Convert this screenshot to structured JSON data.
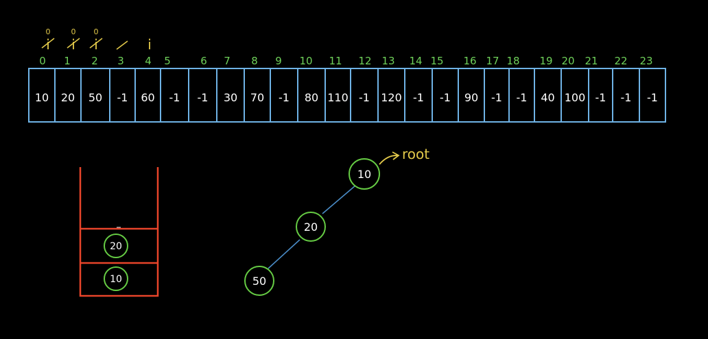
{
  "array": {
    "indices": [
      "0",
      "1",
      "2",
      "3",
      "4",
      "5",
      "6",
      "7",
      "8",
      "9",
      "10",
      "11",
      "12",
      "13",
      "14",
      "15",
      "16",
      "17",
      "18",
      "19",
      "20",
      "21",
      "22",
      "23"
    ],
    "values": [
      "10",
      "20",
      "50",
      "-1",
      "60",
      "-1",
      "-1",
      "30",
      "70",
      "-1",
      "80",
      "110",
      "-1",
      "120",
      "-1",
      "-1",
      "90",
      "-1",
      "-1",
      "40",
      "100",
      "-1",
      "-1",
      "-1"
    ]
  },
  "pointer": {
    "label": "i",
    "history": [
      {
        "zero": "0",
        "at": 0
      },
      {
        "zero": "0",
        "at": 1
      },
      {
        "zero": "0",
        "at": 2
      },
      {
        "zero": "",
        "at": 4
      }
    ]
  },
  "stack": {
    "items": [
      "20",
      "10"
    ]
  },
  "tree": {
    "nodes": [
      "10",
      "20",
      "50"
    ],
    "root_label": "root"
  },
  "colors": {
    "background": "#000000",
    "array_border": "#6fb3e6",
    "index_text": "#6fd15a",
    "pointer": "#e2c94a",
    "stack": "#e8442a",
    "node_circle": "#66cc44",
    "edge": "#4a8cc7",
    "root_label": "#e2c94a",
    "text": "#ffffff"
  }
}
